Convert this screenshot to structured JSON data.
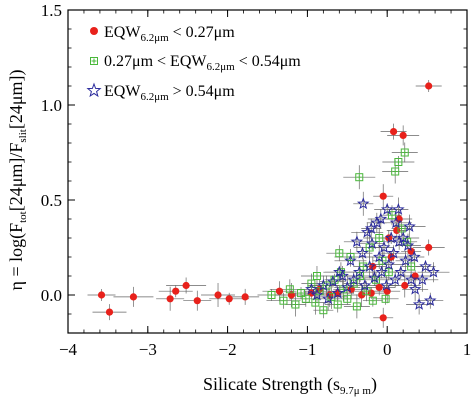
{
  "chart_data": {
    "type": "scatter",
    "xlabel": {
      "main": "Silicate Strength (s",
      "sub": "9.7μ m",
      "close": ")"
    },
    "ylabel": {
      "p1": "η = log(F",
      "s1": "tot",
      "p2": "[24μm]/F",
      "s2": "slit",
      "p3": "[24μm])"
    },
    "xlim": [
      -4,
      1
    ],
    "ylim": [
      -0.2,
      1.5
    ],
    "xticks": [
      -4,
      -3,
      -2,
      -1,
      0,
      1
    ],
    "xtick_labels": [
      "−4",
      "−3",
      "−2",
      "−1",
      "0",
      "1"
    ],
    "yticks": [
      0.0,
      0.5,
      1.0,
      1.5
    ],
    "ytick_labels": [
      "0.0",
      "0.5",
      "1.0",
      "1.5"
    ],
    "legend_position": "top-left",
    "series": [
      {
        "name": {
          "pre": "EQW",
          "sub": "6.2μm",
          "post": " < 0.27μm"
        },
        "marker": "filled-circle",
        "color": "#e8211b",
        "points": [
          [
            -3.58,
            0.0
          ],
          [
            -3.48,
            -0.09
          ],
          [
            -3.18,
            -0.01
          ],
          [
            -2.72,
            -0.02
          ],
          [
            -2.65,
            0.02
          ],
          [
            -2.52,
            0.05
          ],
          [
            -2.38,
            -0.03
          ],
          [
            -2.12,
            0.0
          ],
          [
            -1.98,
            -0.02
          ],
          [
            -1.78,
            -0.01
          ],
          [
            -1.35,
            0.02
          ],
          [
            -1.2,
            0.0
          ],
          [
            -0.95,
            0.01
          ],
          [
            -0.62,
            0.01
          ],
          [
            -0.45,
            0.03
          ],
          [
            -0.32,
            0.0
          ],
          [
            -0.2,
            0.01
          ],
          [
            -0.1,
            0.04
          ],
          [
            -0.05,
            -0.12
          ],
          [
            0.0,
            0.02
          ],
          [
            0.05,
            0.2
          ],
          [
            0.12,
            0.34
          ],
          [
            0.15,
            0.4
          ],
          [
            0.22,
            0.05
          ],
          [
            0.3,
            0.23
          ],
          [
            0.08,
            0.86
          ],
          [
            0.2,
            0.84
          ],
          [
            -0.05,
            0.52
          ],
          [
            0.52,
            1.1
          ],
          [
            0.52,
            0.25
          ],
          [
            -0.85,
            0.03
          ],
          [
            -0.72,
            0.0
          ],
          [
            0.35,
            0.1
          ],
          [
            0.02,
            0.3
          ],
          [
            -0.18,
            0.15
          ]
        ]
      },
      {
        "name": {
          "pre": "0.27μm < EQW",
          "sub": "6.2μm",
          "post": " < 0.54μm"
        },
        "marker": "open-square-plus",
        "color": "#49b83a",
        "points": [
          [
            -1.45,
            0.0
          ],
          [
            -1.3,
            -0.03
          ],
          [
            -1.22,
            0.03
          ],
          [
            -1.15,
            -0.05
          ],
          [
            -1.08,
            0.01
          ],
          [
            -1.02,
            -0.02
          ],
          [
            -0.95,
            0.06
          ],
          [
            -0.9,
            -0.04
          ],
          [
            -0.85,
            0.02
          ],
          [
            -0.8,
            -0.08
          ],
          [
            -0.76,
            0.05
          ],
          [
            -0.7,
            -0.01
          ],
          [
            -0.66,
            0.08
          ],
          [
            -0.62,
            -0.05
          ],
          [
            -0.58,
            0.12
          ],
          [
            -0.55,
            0.03
          ],
          [
            -0.5,
            -0.02
          ],
          [
            -0.46,
            0.2
          ],
          [
            -0.42,
            0.06
          ],
          [
            -0.38,
            -0.06
          ],
          [
            -0.34,
            0.1
          ],
          [
            -0.3,
            0.15
          ],
          [
            -0.26,
            0.02
          ],
          [
            -0.22,
            0.25
          ],
          [
            -0.18,
            -0.03
          ],
          [
            -0.14,
            0.08
          ],
          [
            -0.1,
            0.3
          ],
          [
            -0.06,
            0.18
          ],
          [
            -0.02,
            -0.02
          ],
          [
            0.02,
            0.12
          ],
          [
            0.06,
            0.42
          ],
          [
            0.1,
            0.65
          ],
          [
            0.14,
            0.7
          ],
          [
            0.18,
            0.35
          ],
          [
            0.22,
            0.75
          ],
          [
            -0.35,
            0.62
          ],
          [
            0.25,
            0.28
          ],
          [
            -0.6,
            0.22
          ],
          [
            -0.88,
            0.1
          ],
          [
            0.3,
            0.15
          ]
        ]
      },
      {
        "name": {
          "pre": "EQW",
          "sub": "6.2μm",
          "post": " > 0.54μm"
        },
        "marker": "open-star",
        "color": "#2a2a9c",
        "points": [
          [
            -0.95,
            0.03
          ],
          [
            -0.88,
            0.0
          ],
          [
            -0.8,
            0.05
          ],
          [
            -0.74,
            -0.02
          ],
          [
            -0.68,
            0.07
          ],
          [
            -0.62,
            0.01
          ],
          [
            -0.56,
            0.1
          ],
          [
            -0.5,
            0.04
          ],
          [
            -0.46,
            0.18
          ],
          [
            -0.42,
            0.08
          ],
          [
            -0.38,
            0.28
          ],
          [
            -0.35,
            0.12
          ],
          [
            -0.31,
            0.22
          ],
          [
            -0.28,
            0.05
          ],
          [
            -0.25,
            0.33
          ],
          [
            -0.22,
            0.15
          ],
          [
            -0.19,
            0.27
          ],
          [
            -0.16,
            0.09
          ],
          [
            -0.13,
            0.38
          ],
          [
            -0.1,
            0.2
          ],
          [
            -0.07,
            0.12
          ],
          [
            -0.04,
            0.25
          ],
          [
            -0.01,
            0.05
          ],
          [
            0.02,
            0.16
          ],
          [
            0.05,
            0.3
          ],
          [
            0.08,
            0.22
          ],
          [
            0.11,
            0.38
          ],
          [
            0.14,
            0.45
          ],
          [
            0.17,
            0.12
          ],
          [
            0.2,
            0.3
          ],
          [
            0.23,
            0.18
          ],
          [
            0.26,
            0.26
          ],
          [
            0.3,
            0.08
          ],
          [
            0.34,
            0.2
          ],
          [
            0.4,
            -0.05
          ],
          [
            0.44,
            0.08
          ],
          [
            0.48,
            0.15
          ],
          [
            0.54,
            -0.03
          ],
          [
            0.58,
            0.12
          ],
          [
            -0.3,
            0.48
          ],
          [
            0.0,
            0.45
          ],
          [
            0.15,
            0.28
          ],
          [
            -0.2,
            0.35
          ],
          [
            0.35,
            0.03
          ],
          [
            -0.6,
            0.12
          ],
          [
            0.1,
            0.08
          ],
          [
            -0.08,
            0.4
          ],
          [
            0.28,
            0.36
          ]
        ]
      }
    ]
  }
}
